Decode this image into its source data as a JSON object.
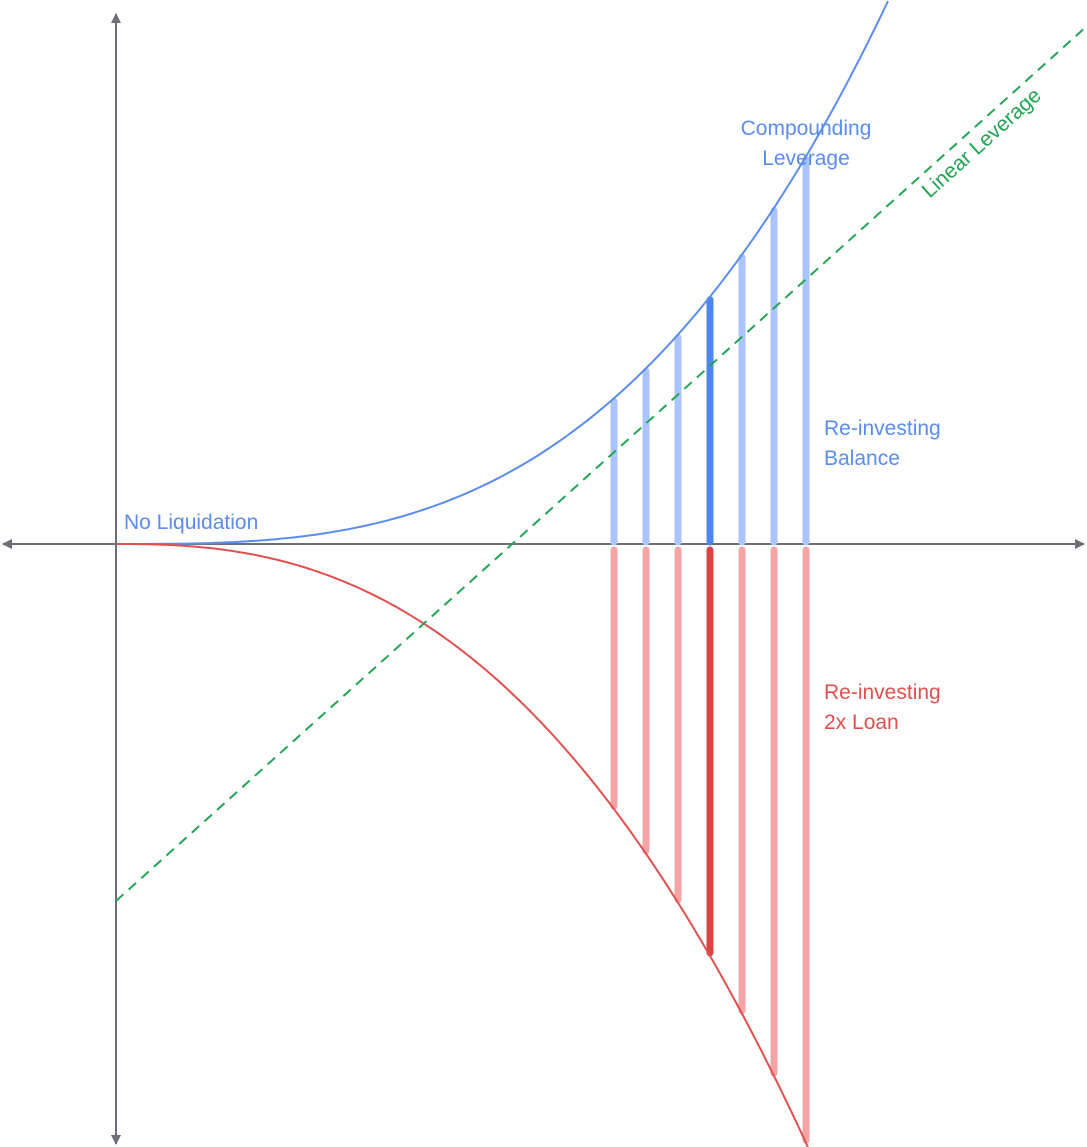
{
  "colors": {
    "axis": "#6e6e78",
    "compounding": "#5b8def",
    "compounding_bar": "#a9c5fb",
    "compounding_bar_highlight": "#4f86ee",
    "loan": "#e0504f",
    "loan_bar": "#f3a5a6",
    "loan_bar_highlight": "#dc4143",
    "linear": "#22a552"
  },
  "labels": {
    "no_liquidation": "No Liquidation",
    "compounding_line1": "Compounding",
    "compounding_line2": "Leverage",
    "linear_leverage": "Linear Leverage",
    "balance_line1": "Re-investing",
    "balance_line2": "Balance",
    "loan_line1": "Re-investing",
    "loan_line2": "2x Loan"
  },
  "chart_data": {
    "type": "line",
    "title": "",
    "xlabel": "",
    "ylabel": "",
    "axes_ticks": false,
    "series": [
      {
        "name": "Compounding Leverage",
        "style": "solid",
        "color": "#5b8def"
      },
      {
        "name": "Linear Leverage",
        "style": "dashed",
        "color": "#22a552"
      },
      {
        "name": "Re-investing 2x Loan",
        "style": "solid",
        "color": "#e0504f"
      }
    ],
    "bars": {
      "count": 7,
      "highlight_index": 3,
      "upper_label": "Re-investing Balance",
      "lower_label": "Re-investing 2x Loan"
    },
    "annotations": [
      "No Liquidation"
    ]
  }
}
